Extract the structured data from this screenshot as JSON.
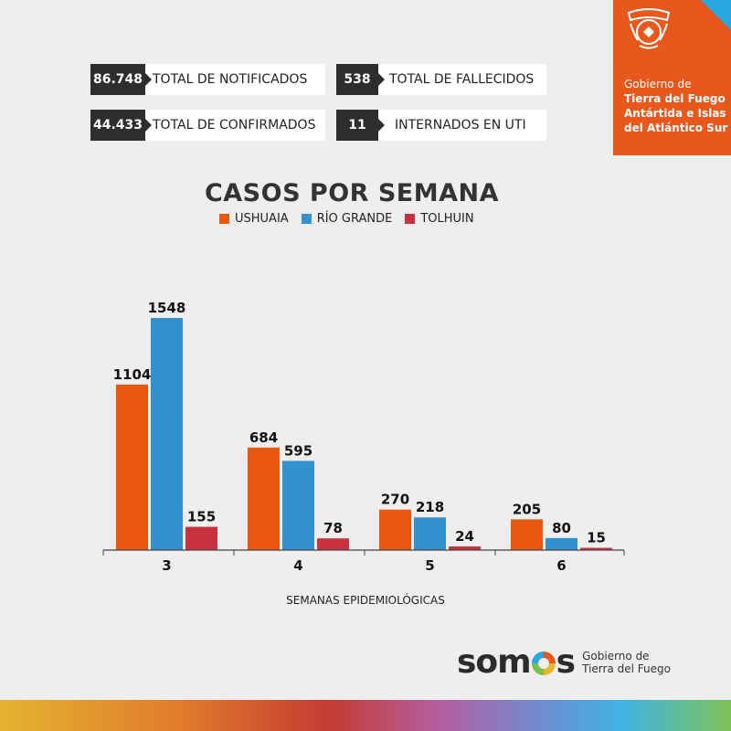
{
  "stats": [
    {
      "value": "86.748",
      "label": "TOTAL DE NOTIFICADOS"
    },
    {
      "value": "538",
      "label": "TOTAL DE FALLECIDOS"
    },
    {
      "value": "44.433",
      "label": "TOTAL DE CONFIRMADOS"
    },
    {
      "value": "11",
      "label": "INTERNADOS EN UTI"
    }
  ],
  "organization": {
    "line1": "Gobierno de",
    "line2": "Tierra del Fuego",
    "line3": "Antártida e Islas",
    "line4": "del Atlántico Sur"
  },
  "footer": {
    "brand_left": "som",
    "brand_right": "s",
    "gov_line1": "Gobierno de",
    "gov_line2": "Tierra del Fuego"
  },
  "chart_data": {
    "type": "bar",
    "title": "CASOS POR SEMANA",
    "xlabel": "SEMANAS EPIDEMIOLÓGICAS",
    "ylabel": "",
    "categories": [
      "3",
      "4",
      "5",
      "6"
    ],
    "series": [
      {
        "name": "USHUAIA",
        "color": "#e8580f",
        "values": [
          1104,
          684,
          270,
          205
        ]
      },
      {
        "name": "RÍO GRANDE",
        "color": "#3192cf",
        "values": [
          1548,
          595,
          218,
          80
        ]
      },
      {
        "name": "TOLHUIN",
        "color": "#c8323f",
        "values": [
          155,
          78,
          24,
          15
        ]
      }
    ],
    "ylim": [
      0,
      1548
    ],
    "grid": false,
    "legend": "top"
  }
}
